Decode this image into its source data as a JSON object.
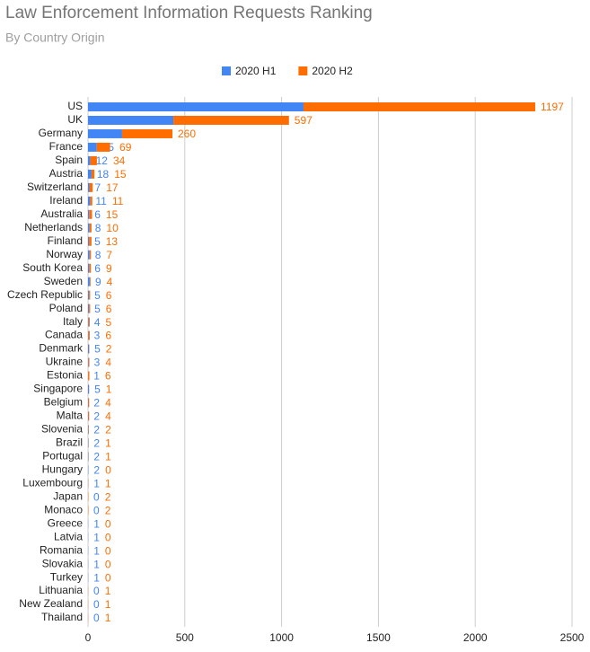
{
  "chart_data": {
    "type": "bar",
    "orientation": "horizontal",
    "stacked": true,
    "title": "Law Enforcement Information Requests Ranking",
    "subtitle": "By Country Origin",
    "legend": "top",
    "grid": true,
    "categories": [
      "US",
      "UK",
      "Germany",
      "France",
      "Spain",
      "Austria",
      "Switzerland",
      "Ireland",
      "Australia",
      "Netherlands",
      "Finland",
      "Norway",
      "South Korea",
      "Sweden",
      "Czech Republic",
      "Poland",
      "Italy",
      "Canada",
      "Denmark",
      "Ukraine",
      "Estonia",
      "Singapore",
      "Belgium",
      "Malta",
      "Slovenia",
      "Brazil",
      "Portugal",
      "Hungary",
      "Luxembourg",
      "Japan",
      "Monaco",
      "Greece",
      "Latvia",
      "Romania",
      "Slovakia",
      "Turkey",
      "Lithuania",
      "New Zealand",
      "Thailand"
    ],
    "series": [
      {
        "name": "2020 H1",
        "color": "#4285f4",
        "values": [
          1113,
          441,
          176,
          45,
          12,
          18,
          7,
          11,
          6,
          8,
          5,
          8,
          6,
          9,
          5,
          5,
          4,
          3,
          5,
          3,
          1,
          5,
          2,
          2,
          2,
          2,
          2,
          2,
          1,
          0,
          0,
          1,
          1,
          1,
          1,
          1,
          0,
          0,
          0
        ]
      },
      {
        "name": "2020 H2",
        "color": "#ff6d01",
        "values": [
          1197,
          597,
          260,
          69,
          34,
          15,
          17,
          11,
          15,
          10,
          13,
          7,
          9,
          4,
          6,
          6,
          5,
          6,
          2,
          4,
          6,
          1,
          4,
          4,
          2,
          1,
          1,
          0,
          1,
          2,
          2,
          0,
          0,
          0,
          0,
          0,
          1,
          1,
          1
        ]
      }
    ],
    "xlim": [
      0,
      2500
    ],
    "xticks": [
      0,
      500,
      1000,
      1500,
      2000,
      2500
    ]
  }
}
